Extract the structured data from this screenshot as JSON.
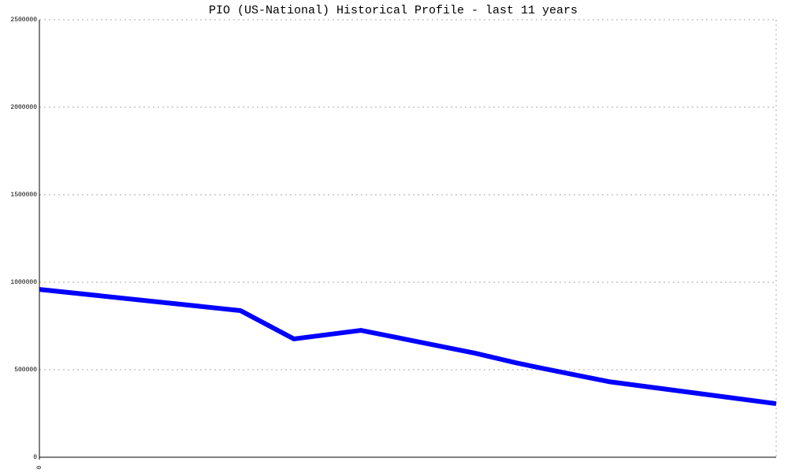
{
  "chart_data": {
    "type": "line",
    "title": "PIO (US-National) Historical Profile - last 11 years",
    "x": [
      0,
      3,
      3.8,
      4.8,
      6.5,
      7.1,
      7.5,
      8.5,
      11
    ],
    "series": [
      {
        "color": "#0000ff",
        "values": [
          959000,
          838000,
          676000,
          725000,
          595000,
          541000,
          509000,
          432000,
          306000
        ]
      }
    ],
    "xlim": [
      0,
      11
    ],
    "xticks": [
      0
    ],
    "ylim": [
      0,
      2500000
    ],
    "yticks": [
      0,
      500000,
      1000000,
      1500000,
      2000000,
      2500000
    ],
    "grid": true
  }
}
